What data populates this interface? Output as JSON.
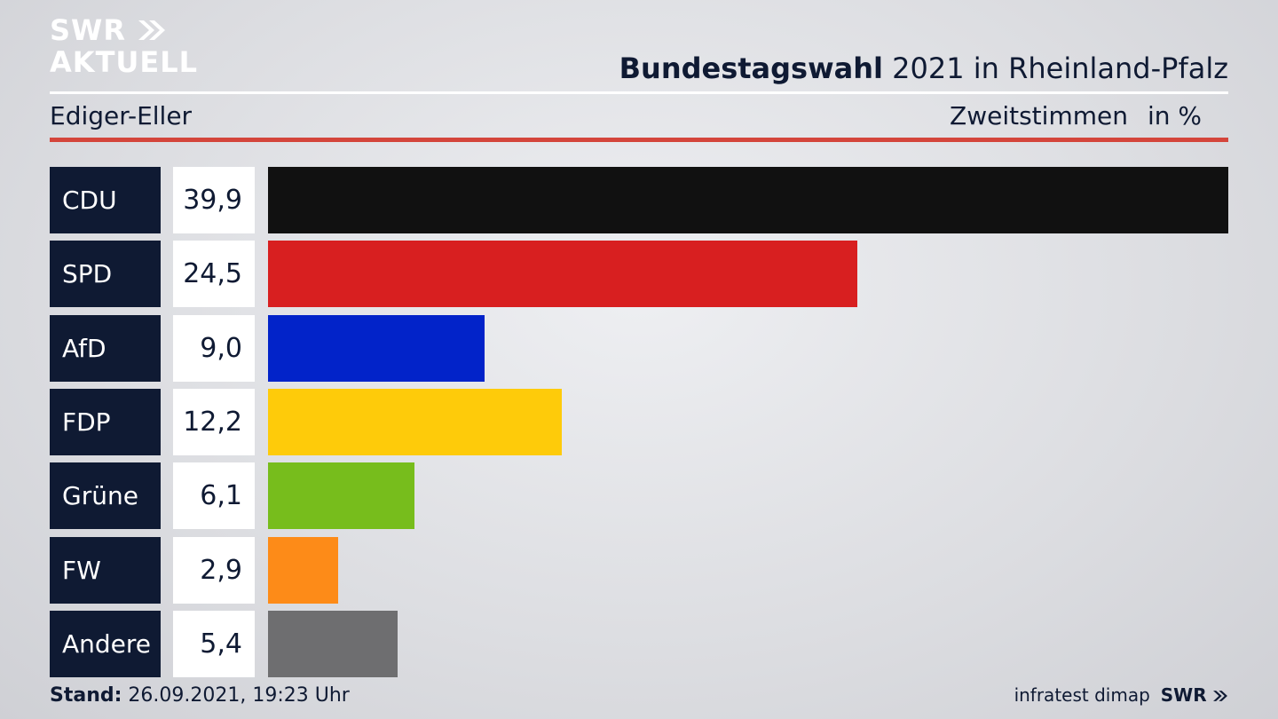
{
  "logo": {
    "line1": "SWR",
    "line2": "AKTUELL"
  },
  "header": {
    "title_bold": "Bundestagswahl",
    "title_rest": " 2021 in Rheinland-Pfalz",
    "place": "Ediger-Eller",
    "measure": "Zweitstimmen",
    "unit": "in %"
  },
  "chart_data": {
    "type": "bar",
    "orientation": "horizontal",
    "categories": [
      "CDU",
      "SPD",
      "AfD",
      "FDP",
      "Grüne",
      "FW",
      "Andere"
    ],
    "values": [
      39.9,
      24.5,
      9.0,
      12.2,
      6.1,
      2.9,
      5.4
    ],
    "value_labels": [
      "39,9",
      "24,5",
      "9,0",
      "12,2",
      "6,1",
      "2,9",
      "5,4"
    ],
    "colors": [
      "#111111",
      "#d81f20",
      "#0223c9",
      "#fecb0a",
      "#77bd1c",
      "#fd8b18",
      "#6e6e70"
    ],
    "xlim": [
      0,
      39.9
    ]
  },
  "footer": {
    "stand_label": "Stand:",
    "stand_value": " 26.09.2021, 19:23 Uhr",
    "source": "infratest dimap",
    "brand": "SWR"
  }
}
